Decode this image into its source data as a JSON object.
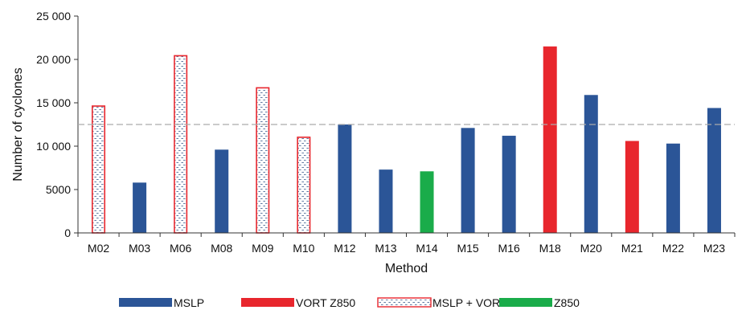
{
  "chart_data": {
    "type": "bar",
    "categories": [
      "M02",
      "M03",
      "M06",
      "M08",
      "M09",
      "M10",
      "M12",
      "M13",
      "M14",
      "M15",
      "M16",
      "M18",
      "M20",
      "M21",
      "M22",
      "M23"
    ],
    "values": [
      14700,
      5800,
      20500,
      9600,
      16800,
      11100,
      12500,
      7300,
      7100,
      12100,
      11200,
      21500,
      15900,
      10600,
      10300,
      14400
    ],
    "groups": [
      "MSLP + VORT",
      "MSLP",
      "MSLP + VORT",
      "MSLP",
      "MSLP + VORT",
      "MSLP + VORT",
      "MSLP",
      "MSLP",
      "Z850",
      "MSLP",
      "MSLP",
      "VORT Z850",
      "MSLP",
      "VORT Z850",
      "MSLP",
      "MSLP"
    ],
    "xlabel": "Method",
    "ylabel": "Number of cyclones",
    "ylim": [
      0,
      25000
    ],
    "yticks": [
      0,
      5000,
      10000,
      15000,
      20000,
      25000
    ],
    "ytick_labels": [
      "0",
      "5000",
      "10 000",
      "15 000",
      "20 000",
      "25 000"
    ],
    "reference_line": 12500,
    "grid": false,
    "legend_position": "bottom",
    "legend": [
      {
        "name": "MSLP",
        "style": "solid",
        "color": "#2b5597"
      },
      {
        "name": "VORT Z850",
        "style": "solid",
        "color": "#e8262d"
      },
      {
        "name": "MSLP + VORT",
        "style": "hatched",
        "color": "#e8262d"
      },
      {
        "name": "Z850",
        "style": "solid",
        "color": "#1aac4a"
      }
    ],
    "colors": {
      "MSLP": "#2b5597",
      "VORT Z850": "#e8262d",
      "MSLP + VORT": "#e8262d",
      "Z850": "#1aac4a",
      "reference_line": "#aaaaaa",
      "axis": "#333333"
    }
  }
}
